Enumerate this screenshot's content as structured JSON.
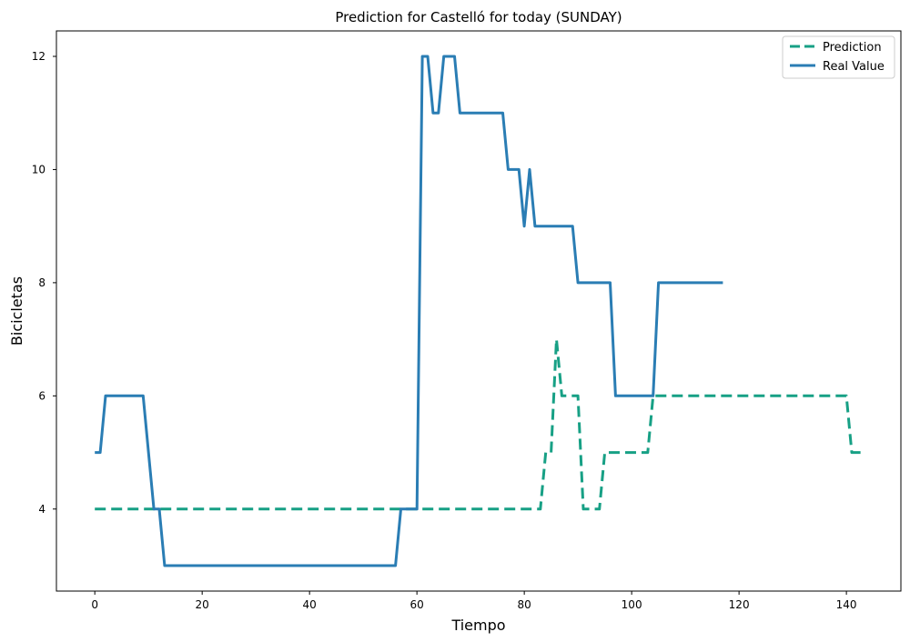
{
  "chart_data": {
    "type": "line",
    "title": "Prediction for Castelló for today (SUNDAY)",
    "xlabel": "Tiempo",
    "ylabel": "Bicicletas",
    "xlim": [
      -7.15,
      150.15
    ],
    "ylim": [
      2.55,
      12.45
    ],
    "xticks": [
      0,
      20,
      40,
      60,
      80,
      100,
      120,
      140
    ],
    "yticks": [
      4,
      6,
      8,
      10,
      12
    ],
    "grid": false,
    "legend_position": "top-right",
    "colors": {
      "prediction": "#17a085",
      "real": "#2a7db4"
    },
    "series": [
      {
        "name": "Prediction",
        "style": "dashed",
        "x": [
          0,
          83,
          84,
          85,
          86,
          87,
          88,
          89,
          90,
          91,
          92,
          93,
          94,
          95,
          96,
          97,
          98,
          99,
          100,
          101,
          102,
          103,
          104,
          105,
          106,
          140,
          141,
          142,
          143
        ],
        "y": [
          4,
          4,
          5,
          5,
          7,
          6,
          6,
          6,
          6,
          4,
          4,
          4,
          4,
          5,
          5,
          5,
          5,
          5,
          5,
          5,
          5,
          5,
          6,
          6,
          6,
          6,
          5,
          5,
          5
        ]
      },
      {
        "name": "Real Value",
        "style": "solid",
        "x": [
          0,
          1,
          2,
          9,
          10,
          11,
          12,
          13,
          56,
          57,
          60,
          61,
          62,
          63,
          64,
          65,
          66,
          67,
          68,
          76,
          77,
          79,
          80,
          81,
          82,
          89,
          90,
          96,
          97,
          104,
          105,
          117
        ],
        "y": [
          5,
          5,
          6,
          6,
          5,
          4,
          4,
          3,
          3,
          4,
          4,
          12,
          12,
          11,
          11,
          12,
          12,
          12,
          11,
          11,
          10,
          10,
          9,
          10,
          9,
          9,
          8,
          8,
          6,
          6,
          8,
          8
        ]
      }
    ]
  }
}
